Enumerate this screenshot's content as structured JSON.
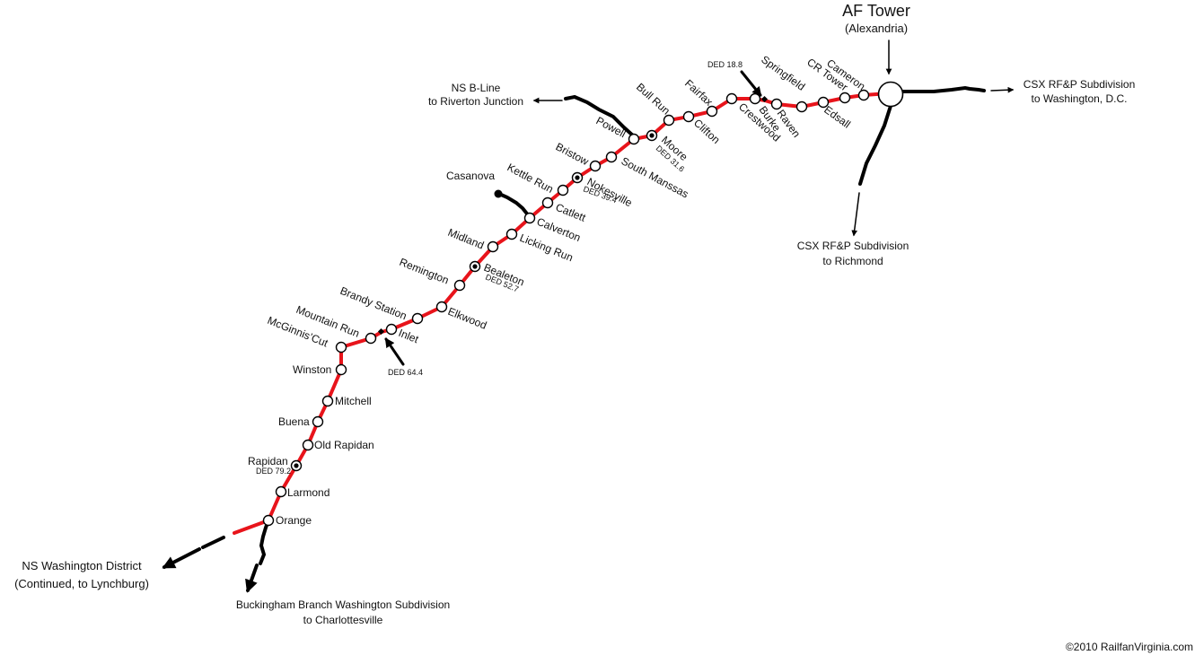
{
  "tower": {
    "name": "AF Tower",
    "sub": "(Alexandria)"
  },
  "copyright": "©2010 RailfanVirginia.com",
  "stations": [
    {
      "id": "cameron",
      "name": "Cameron"
    },
    {
      "id": "cr-tower",
      "name": "CR Tower"
    },
    {
      "id": "edsall",
      "name": "Edsall"
    },
    {
      "id": "springfield",
      "name": "Springfield"
    },
    {
      "id": "raven",
      "name": "Raven"
    },
    {
      "id": "burke",
      "name": "Burke"
    },
    {
      "id": "crestwood",
      "name": "Crestwood"
    },
    {
      "id": "fairfax",
      "name": "Fairfax"
    },
    {
      "id": "clifton",
      "name": "Clifton"
    },
    {
      "id": "bull-run",
      "name": "Bull Run"
    },
    {
      "id": "moore",
      "name": "Moore"
    },
    {
      "id": "powell",
      "name": "Powell"
    },
    {
      "id": "south-manssas",
      "name": "South Manssas"
    },
    {
      "id": "bristow",
      "name": "Bristow"
    },
    {
      "id": "nokesville",
      "name": "Nokesville"
    },
    {
      "id": "kettle-run",
      "name": "Kettle Run"
    },
    {
      "id": "catlett",
      "name": "Catlett"
    },
    {
      "id": "calverton",
      "name": "Calverton"
    },
    {
      "id": "licking-run",
      "name": "Licking Run"
    },
    {
      "id": "midland",
      "name": "Midland"
    },
    {
      "id": "bealeton",
      "name": "Bealeton"
    },
    {
      "id": "remington",
      "name": "Remington"
    },
    {
      "id": "elkwood",
      "name": "Elkwood"
    },
    {
      "id": "brandy-station",
      "name": "Brandy Station"
    },
    {
      "id": "inlet",
      "name": "Inlet"
    },
    {
      "id": "mountain-run",
      "name": "Mountain Run"
    },
    {
      "id": "mcginnis-cut",
      "name": "McGinnis’Cut"
    },
    {
      "id": "winston",
      "name": "Winston"
    },
    {
      "id": "mitchell",
      "name": "Mitchell"
    },
    {
      "id": "buena",
      "name": "Buena"
    },
    {
      "id": "old-rapidan",
      "name": "Old Rapidan"
    },
    {
      "id": "rapidan",
      "name": "Rapidan"
    },
    {
      "id": "larmond",
      "name": "Larmond"
    },
    {
      "id": "orange",
      "name": "Orange"
    },
    {
      "id": "casanova",
      "name": "Casanova"
    }
  ],
  "ded": {
    "d188": "DED 18.8",
    "d316": "DED 31.6",
    "d394": "DED 39.4",
    "d527": "DED 52.7",
    "d644": "DED 64.4",
    "d792": "DED 79.2"
  },
  "connections": {
    "csx_dc_1": "CSX RF&P Subdivision",
    "csx_dc_2": "to Washington, D.C.",
    "csx_ric_1": "CSX RF&P Subdivision",
    "csx_ric_2": "to Richmond",
    "nsb_1": "NS B-Line",
    "nsb_2": "to Riverton Junction",
    "nsw_1": "NS Washington District",
    "nsw_2": "(Continued, to Lynchburg)",
    "bb_1": "Buckingham Branch Washington Subdivision",
    "bb_2": "to Charlottesville"
  },
  "colors": {
    "mainline": "#e8141b",
    "connector": "#000000",
    "station_fill": "#ffffff"
  }
}
